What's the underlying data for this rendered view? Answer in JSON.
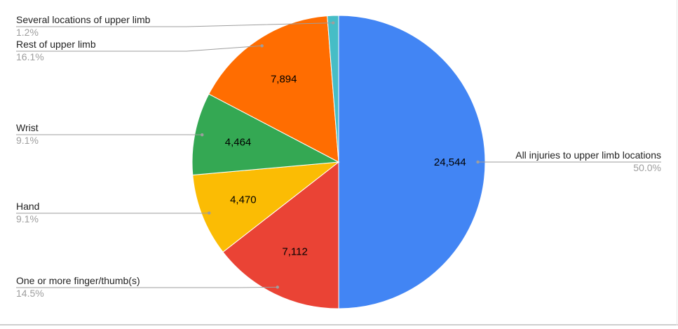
{
  "chart_data": {
    "type": "pie",
    "title": "",
    "slices": [
      {
        "label": "All injuries to upper limb locations",
        "value": 24544,
        "value_label": "24,544",
        "percent_label": "50.0%",
        "color": "#4285f4"
      },
      {
        "label": "One or more finger/thumb(s)",
        "value": 7112,
        "value_label": "7,112",
        "percent_label": "14.5%",
        "color": "#ea4335"
      },
      {
        "label": "Hand",
        "value": 4470,
        "value_label": "4,470",
        "percent_label": "9.1%",
        "color": "#fbbc04"
      },
      {
        "label": "Wrist",
        "value": 4464,
        "value_label": "4,464",
        "percent_label": "9.1%",
        "color": "#34a853"
      },
      {
        "label": "Rest of upper limb",
        "value": 7894,
        "value_label": "7,894",
        "percent_label": "16.1%",
        "color": "#ff6d01"
      },
      {
        "label": "Several locations of upper limb",
        "value": 610,
        "value_label": "",
        "percent_label": "1.2%",
        "color": "#46bdc6"
      }
    ],
    "start_angle": "12 o'clock",
    "direction": "clockwise",
    "legend": "none",
    "label_style": "callout labels with percentages"
  }
}
